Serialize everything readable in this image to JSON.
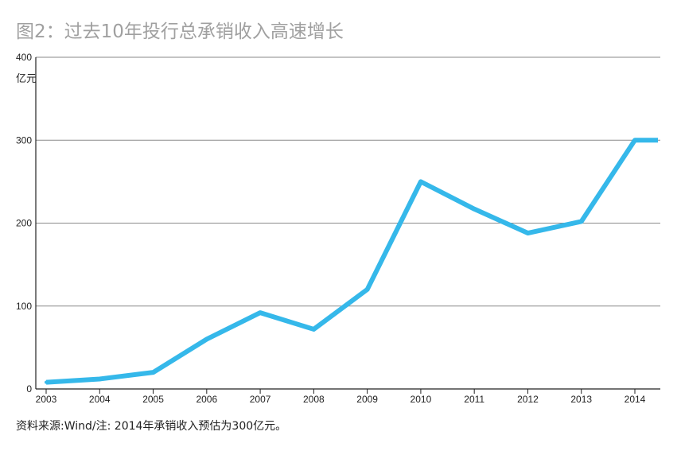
{
  "title": "图2：过去10年投行总承销收入高速增长",
  "unit": "亿元",
  "note": "资料来源:Wind/注: 2014年承销收入预估为300亿元。",
  "colors": {
    "line": "#35b8ea",
    "grid": "#8a8a8a",
    "axis": "#222222"
  },
  "chart_data": {
    "type": "line",
    "title": "图2：过去10年投行总承销收入高速增长",
    "xlabel": "",
    "ylabel": "亿元",
    "categories": [
      "2003",
      "2004",
      "2005",
      "2006",
      "2007",
      "2008",
      "2009",
      "2010",
      "2011",
      "2012",
      "2013",
      "2014"
    ],
    "x_tick_labels": [
      "2003",
      "2004",
      "2005",
      "2006",
      "2007",
      "2008",
      "2009",
      "2010",
      "2011",
      "2012",
      "2013",
      "2014"
    ],
    "series": [
      {
        "values": [
          8,
          12,
          20,
          60,
          92,
          72,
          120,
          250,
          217,
          188,
          202,
          300
        ]
      }
    ],
    "ylim": [
      0,
      400
    ],
    "y_ticks": [
      0,
      100,
      200,
      300,
      400
    ],
    "grid": true,
    "legend": "none"
  }
}
